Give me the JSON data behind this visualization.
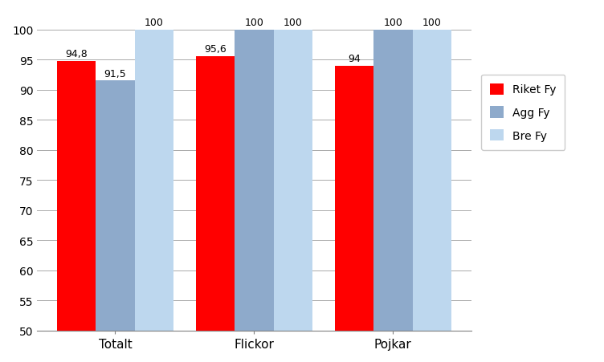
{
  "categories": [
    "Totalt",
    "Flickor",
    "Pojkar"
  ],
  "series": [
    {
      "label": "Riket Fy",
      "values": [
        94.8,
        95.6,
        94
      ],
      "color": "#FF0000"
    },
    {
      "label": "Agg Fy",
      "values": [
        91.5,
        100,
        100
      ],
      "color": "#8EAACB"
    },
    {
      "label": "Bre Fy",
      "values": [
        100,
        100,
        100
      ],
      "color": "#BDD7EE"
    }
  ],
  "bar_labels": [
    [
      "94,8",
      "91,5",
      "100"
    ],
    [
      "95,6",
      "100",
      "100"
    ],
    [
      "94",
      "100",
      "100"
    ]
  ],
  "ylim": [
    50,
    103
  ],
  "yticks": [
    50,
    55,
    60,
    65,
    70,
    75,
    80,
    85,
    90,
    95,
    100
  ],
  "background_color": "#FFFFFF",
  "grid_color": "#AAAAAA",
  "bar_width": 0.28,
  "figsize": [
    7.52,
    4.52
  ],
  "dpi": 100
}
